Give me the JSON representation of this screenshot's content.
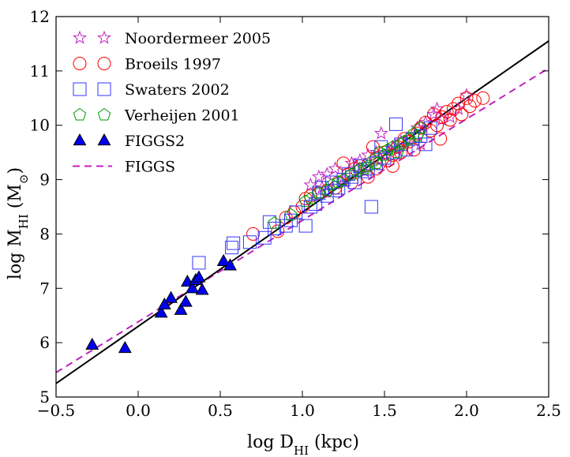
{
  "chart_data": {
    "type": "scatter",
    "title": "",
    "xlabel": "log D_HI (kpc)",
    "ylabel": "log M_HI (M_sun)",
    "xlabel_parts": {
      "main": "log D",
      "sub": "HI",
      "tail": " (kpc)"
    },
    "ylabel_parts": {
      "main": "log M",
      "sub": "HI",
      "tail": " (M",
      "sun": "⊙",
      "end": ")"
    },
    "xlim": [
      -0.5,
      2.5
    ],
    "ylim": [
      5,
      12
    ],
    "xticks": [
      -0.5,
      0.0,
      0.5,
      1.0,
      1.5,
      2.0,
      2.5
    ],
    "xtick_labels": [
      "−0.5",
      "0.0",
      "0.5",
      "1.0",
      "1.5",
      "2.0",
      "2.5"
    ],
    "yticks": [
      5,
      6,
      7,
      8,
      9,
      10,
      11,
      12
    ],
    "ytick_labels": [
      "5",
      "6",
      "7",
      "8",
      "9",
      "10",
      "11",
      "12"
    ],
    "grid": false,
    "legend_position": "top-left",
    "series": [
      {
        "name": "Noordermeer 2005",
        "marker": "star",
        "color": "#c020c0",
        "points": [
          [
            1.05,
            8.9
          ],
          [
            1.1,
            9.05
          ],
          [
            1.15,
            9.1
          ],
          [
            1.2,
            9.2
          ],
          [
            1.3,
            9.3
          ],
          [
            1.35,
            9.35
          ],
          [
            1.4,
            9.45
          ],
          [
            1.45,
            9.5
          ],
          [
            1.48,
            9.85
          ],
          [
            1.55,
            9.6
          ],
          [
            1.6,
            9.7
          ],
          [
            1.65,
            9.75
          ],
          [
            1.7,
            9.95
          ],
          [
            1.75,
            10.05
          ],
          [
            1.8,
            10.2
          ],
          [
            1.82,
            10.3
          ],
          [
            1.9,
            10.15
          ],
          [
            1.95,
            10.3
          ],
          [
            2.0,
            10.55
          ],
          [
            1.72,
            9.65
          ],
          [
            1.25,
            9.0
          ],
          [
            1.12,
            8.85
          ],
          [
            1.58,
            9.55
          ],
          [
            1.85,
            10.1
          ],
          [
            1.5,
            9.45
          ],
          [
            1.38,
            9.15
          ]
        ]
      },
      {
        "name": "Broeils 1997",
        "marker": "circle",
        "color": "#ff0000",
        "points": [
          [
            0.7,
            8.0
          ],
          [
            0.85,
            8.05
          ],
          [
            0.9,
            8.3
          ],
          [
            0.95,
            8.4
          ],
          [
            1.0,
            8.5
          ],
          [
            1.02,
            8.65
          ],
          [
            1.05,
            8.7
          ],
          [
            1.1,
            8.75
          ],
          [
            1.15,
            8.8
          ],
          [
            1.2,
            8.85
          ],
          [
            1.22,
            8.95
          ],
          [
            1.25,
            9.3
          ],
          [
            1.28,
            9.1
          ],
          [
            1.32,
            9.2
          ],
          [
            1.35,
            9.25
          ],
          [
            1.4,
            9.05
          ],
          [
            1.43,
            9.6
          ],
          [
            1.45,
            9.4
          ],
          [
            1.47,
            9.3
          ],
          [
            1.5,
            9.5
          ],
          [
            1.52,
            9.35
          ],
          [
            1.55,
            9.45
          ],
          [
            1.58,
            9.6
          ],
          [
            1.6,
            9.5
          ],
          [
            1.62,
            9.75
          ],
          [
            1.65,
            9.7
          ],
          [
            1.68,
            9.55
          ],
          [
            1.7,
            9.85
          ],
          [
            1.72,
            9.95
          ],
          [
            1.75,
            10.05
          ],
          [
            1.78,
            9.9
          ],
          [
            1.8,
            10.2
          ],
          [
            1.82,
            10.0
          ],
          [
            1.84,
            9.75
          ],
          [
            1.85,
            10.15
          ],
          [
            1.88,
            10.25
          ],
          [
            1.9,
            10.1
          ],
          [
            1.92,
            10.3
          ],
          [
            1.95,
            10.4
          ],
          [
            1.97,
            10.2
          ],
          [
            2.0,
            10.5
          ],
          [
            2.02,
            10.35
          ],
          [
            2.05,
            10.45
          ],
          [
            2.1,
            10.5
          ],
          [
            1.3,
            8.95
          ],
          [
            1.45,
            9.2
          ],
          [
            1.55,
            9.25
          ]
        ]
      },
      {
        "name": "Swaters 2002",
        "marker": "square",
        "color": "#3333ff",
        "points": [
          [
            0.37,
            7.47
          ],
          [
            0.57,
            7.75
          ],
          [
            0.58,
            7.83
          ],
          [
            0.68,
            7.85
          ],
          [
            0.77,
            7.93
          ],
          [
            0.8,
            8.22
          ],
          [
            0.83,
            8.1
          ],
          [
            0.9,
            8.15
          ],
          [
            0.93,
            8.25
          ],
          [
            0.96,
            8.4
          ],
          [
            1.02,
            8.15
          ],
          [
            1.05,
            8.5
          ],
          [
            1.08,
            8.55
          ],
          [
            1.1,
            8.75
          ],
          [
            1.12,
            8.85
          ],
          [
            1.15,
            8.7
          ],
          [
            1.18,
            8.95
          ],
          [
            1.22,
            8.85
          ],
          [
            1.25,
            9.0
          ],
          [
            1.28,
            9.1
          ],
          [
            1.32,
            8.95
          ],
          [
            1.35,
            9.25
          ],
          [
            1.38,
            9.15
          ],
          [
            1.42,
            8.5
          ],
          [
            1.45,
            9.3
          ],
          [
            1.48,
            9.6
          ],
          [
            1.5,
            9.4
          ],
          [
            1.55,
            9.5
          ],
          [
            1.57,
            10.02
          ],
          [
            1.6,
            9.65
          ],
          [
            1.63,
            9.55
          ],
          [
            1.67,
            9.75
          ],
          [
            1.72,
            9.8
          ],
          [
            1.75,
            9.65
          ],
          [
            1.78,
            9.95
          ],
          [
            1.3,
            9.05
          ],
          [
            1.2,
            8.8
          ],
          [
            1.4,
            9.2
          ]
        ]
      },
      {
        "name": "Verheijen 2001",
        "marker": "pentagon",
        "color": "#009900",
        "points": [
          [
            0.83,
            8.2
          ],
          [
            0.93,
            8.35
          ],
          [
            1.02,
            8.6
          ],
          [
            1.05,
            8.65
          ],
          [
            1.1,
            8.75
          ],
          [
            1.15,
            8.8
          ],
          [
            1.18,
            8.9
          ],
          [
            1.22,
            8.95
          ],
          [
            1.25,
            9.0
          ],
          [
            1.3,
            9.1
          ],
          [
            1.33,
            9.15
          ],
          [
            1.38,
            9.2
          ],
          [
            1.4,
            9.25
          ],
          [
            1.43,
            9.35
          ],
          [
            1.47,
            9.5
          ],
          [
            1.5,
            9.45
          ],
          [
            1.52,
            9.55
          ],
          [
            1.55,
            9.6
          ],
          [
            1.58,
            9.5
          ],
          [
            1.6,
            9.65
          ],
          [
            1.62,
            9.7
          ],
          [
            1.65,
            9.75
          ],
          [
            1.68,
            9.85
          ],
          [
            1.7,
            9.8
          ],
          [
            1.72,
            9.95
          ],
          [
            1.45,
            9.3
          ],
          [
            1.35,
            9.2
          ]
        ]
      },
      {
        "name": "FIGGS2",
        "marker": "triangle",
        "color": "#0000ee",
        "points": [
          [
            -0.28,
            5.96
          ],
          [
            -0.08,
            5.9
          ],
          [
            0.14,
            6.55
          ],
          [
            0.16,
            6.7
          ],
          [
            0.2,
            6.82
          ],
          [
            0.26,
            6.6
          ],
          [
            0.29,
            6.75
          ],
          [
            0.3,
            7.12
          ],
          [
            0.33,
            7.0
          ],
          [
            0.35,
            7.15
          ],
          [
            0.37,
            7.2
          ],
          [
            0.39,
            6.97
          ],
          [
            0.52,
            7.5
          ],
          [
            0.56,
            7.42
          ]
        ]
      }
    ],
    "fit_lines": [
      {
        "name": "FIGGS",
        "style": "dashed",
        "color": "#c020c0",
        "x": [
          -0.5,
          2.5
        ],
        "y": [
          5.45,
          11.05
        ]
      },
      {
        "name": "",
        "style": "solid",
        "color": "#000000",
        "x": [
          -0.5,
          2.5
        ],
        "y": [
          5.25,
          11.55
        ]
      }
    ]
  }
}
